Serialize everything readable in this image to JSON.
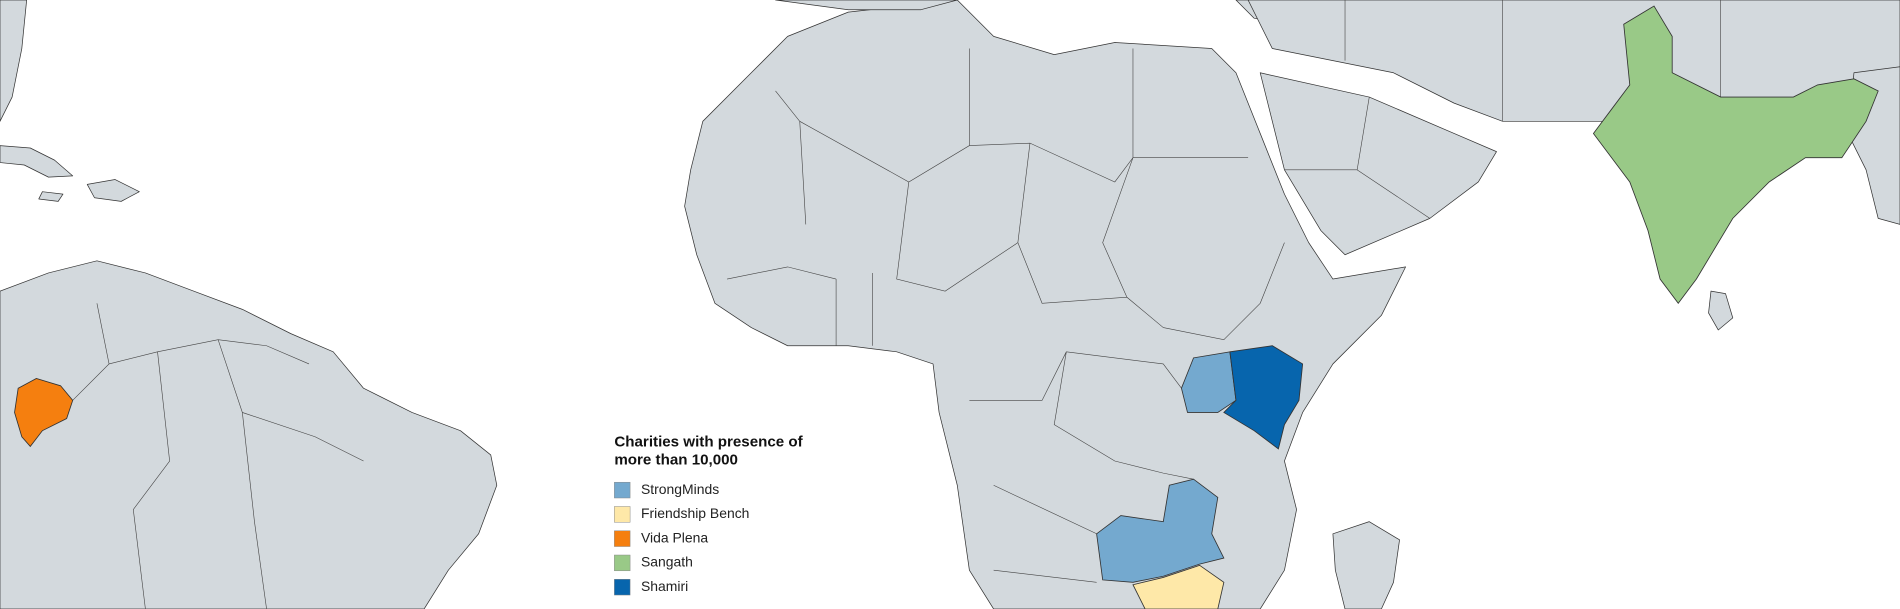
{
  "legend": {
    "title": [
      "Charities with presence of",
      "more than 10,000"
    ],
    "items": [
      {
        "name": "StrongMinds",
        "color": "#74a9cf"
      },
      {
        "name": "Friendship Bench",
        "color": "#fee8a8"
      },
      {
        "name": "Vida Plena",
        "color": "#f57f0f"
      },
      {
        "name": "Sangath",
        "color": "#99c987"
      },
      {
        "name": "Shamiri",
        "color": "#0765ad"
      }
    ]
  }
}
